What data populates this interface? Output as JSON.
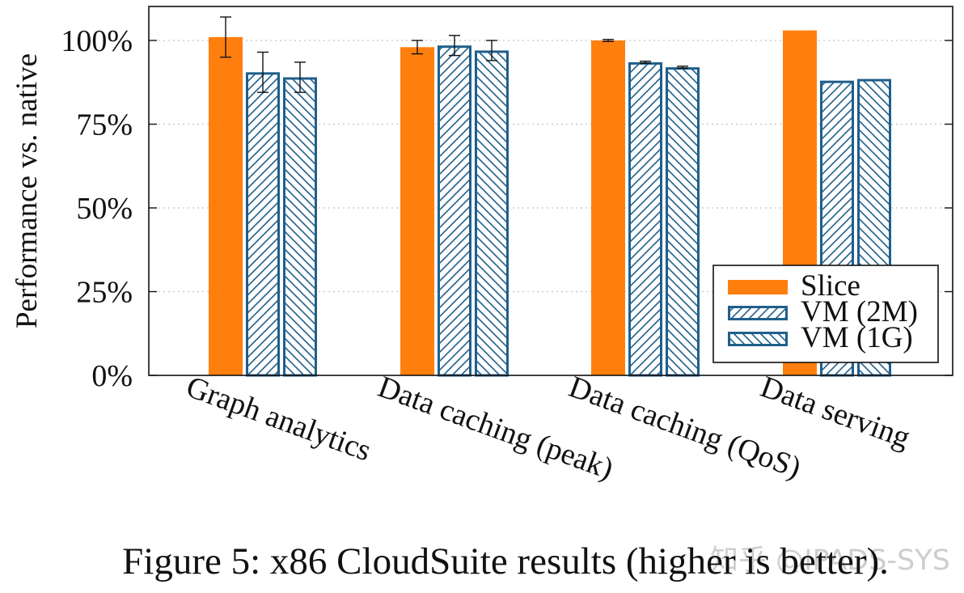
{
  "chart_data": {
    "type": "bar",
    "ylabel": "Performance vs. native",
    "ylim": [
      0,
      110
    ],
    "yticks": [
      0,
      25,
      50,
      75,
      100
    ],
    "ytick_labels": [
      "0%",
      "25%",
      "50%",
      "75%",
      "100%"
    ],
    "grid": true,
    "legend_position": "bottom-right",
    "categories": [
      "Graph analytics",
      "Data caching (peak)",
      "Data caching (QoS)",
      "Data serving"
    ],
    "series": [
      {
        "name": "Slice",
        "style": "solid",
        "color": "#ff7f0e",
        "values": [
          101,
          98,
          100,
          103
        ],
        "errors": [
          6,
          2,
          0.3,
          null
        ]
      },
      {
        "name": "VM (2M)",
        "style": "hatch-forward",
        "color": "#1f5f8b",
        "values": [
          90.5,
          98.5,
          93.5,
          88
        ],
        "errors": [
          6,
          3,
          0.3,
          null
        ]
      },
      {
        "name": "VM (1G)",
        "style": "hatch-back",
        "color": "#1f5f8b",
        "values": [
          89,
          97,
          92,
          88.5
        ],
        "errors": [
          4.5,
          3,
          0.3,
          null
        ]
      }
    ]
  },
  "caption": "Figure 5: x86 CloudSuite results (higher is better).",
  "watermark": "知乎 @IPADS-SYS"
}
